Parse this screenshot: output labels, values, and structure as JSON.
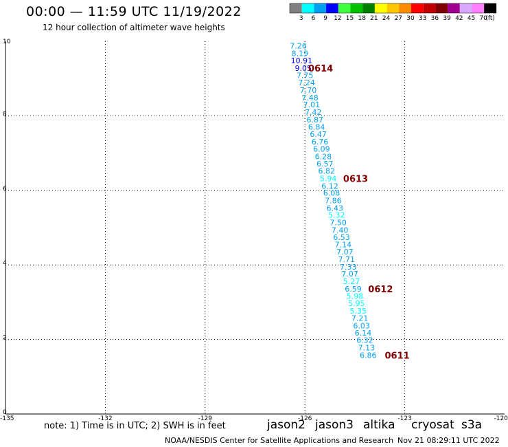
{
  "header": {
    "title": "00:00 — 11:59 UTC 11/19/2022",
    "subtitle": "12 hour collection of altimeter wave heights"
  },
  "legend": {
    "unit": "(ft)",
    "bins": [
      {
        "label": "3",
        "color": "#808080"
      },
      {
        "label": "6",
        "color": "#00ffff"
      },
      {
        "label": "9",
        "color": "#00a0f0"
      },
      {
        "label": "12",
        "color": "#0000ff"
      },
      {
        "label": "15",
        "color": "#40ff40"
      },
      {
        "label": "18",
        "color": "#00c000"
      },
      {
        "label": "21",
        "color": "#008000"
      },
      {
        "label": "24",
        "color": "#ffff00"
      },
      {
        "label": "27",
        "color": "#ffc800"
      },
      {
        "label": "30",
        "color": "#ff8c00"
      },
      {
        "label": "33",
        "color": "#ff0000"
      },
      {
        "label": "36",
        "color": "#c00000"
      },
      {
        "label": "39",
        "color": "#800000"
      },
      {
        "label": "42",
        "color": "#a00090"
      },
      {
        "label": "45",
        "color": "#d8a8ff"
      },
      {
        "label": "70",
        "color": "#ff80ff"
      },
      {
        "label": "",
        "color": "#000000"
      }
    ]
  },
  "chart_data": {
    "type": "scatter",
    "xlim": [
      -135,
      -120
    ],
    "ylim": [
      0,
      10
    ],
    "x_ticks": [
      "-135",
      "-132",
      "-129",
      "-126",
      "-123",
      "-120"
    ],
    "x_tick_values": [
      -135,
      -132,
      -129,
      -126,
      -123,
      -120
    ],
    "y_ticks": [
      "0",
      "2",
      "4",
      "6",
      "8",
      "10"
    ],
    "y_tick_values": [
      0,
      2,
      4,
      6,
      8,
      10
    ],
    "grid": true,
    "points": [
      {
        "lon": -126.2,
        "lat": 9.88,
        "value": "7.26",
        "color": "#00a0f0"
      },
      {
        "lon": -126.15,
        "lat": 9.68,
        "value": "8.19",
        "color": "#00a0f0"
      },
      {
        "lon": -126.1,
        "lat": 9.48,
        "value": "10.91",
        "color": "#0000ff"
      },
      {
        "lon": -126.05,
        "lat": 9.28,
        "value": "9.05",
        "color": "#0000ff"
      },
      {
        "lon": -126.0,
        "lat": 9.09,
        "value": "7.75",
        "color": "#00a0f0"
      },
      {
        "lon": -125.95,
        "lat": 8.89,
        "value": "7.24",
        "color": "#00a0f0"
      },
      {
        "lon": -125.9,
        "lat": 8.69,
        "value": "7.70",
        "color": "#00a0f0"
      },
      {
        "lon": -125.85,
        "lat": 8.49,
        "value": "7.48",
        "color": "#00a0f0"
      },
      {
        "lon": -125.8,
        "lat": 8.3,
        "value": "7.01",
        "color": "#00a0f0"
      },
      {
        "lon": -125.75,
        "lat": 8.1,
        "value": "7.42",
        "color": "#00a0f0"
      },
      {
        "lon": -125.7,
        "lat": 7.9,
        "value": "6.87",
        "color": "#00a0f0"
      },
      {
        "lon": -125.65,
        "lat": 7.7,
        "value": "6.84",
        "color": "#00a0f0"
      },
      {
        "lon": -125.6,
        "lat": 7.51,
        "value": "6.47",
        "color": "#00a0f0"
      },
      {
        "lon": -125.55,
        "lat": 7.31,
        "value": "6.76",
        "color": "#00a0f0"
      },
      {
        "lon": -125.5,
        "lat": 7.11,
        "value": "6.09",
        "color": "#00a0f0"
      },
      {
        "lon": -125.45,
        "lat": 6.91,
        "value": "6.28",
        "color": "#00a0f0"
      },
      {
        "lon": -125.4,
        "lat": 6.72,
        "value": "6.57",
        "color": "#00a0f0"
      },
      {
        "lon": -125.35,
        "lat": 6.52,
        "value": "6.82",
        "color": "#00a0f0"
      },
      {
        "lon": -125.3,
        "lat": 6.32,
        "value": "5.94",
        "color": "#00ffff"
      },
      {
        "lon": -125.25,
        "lat": 6.12,
        "value": "6.12",
        "color": "#00a0f0"
      },
      {
        "lon": -125.2,
        "lat": 5.93,
        "value": "6.08",
        "color": "#00a0f0"
      },
      {
        "lon": -125.15,
        "lat": 5.73,
        "value": "7.86",
        "color": "#00a0f0"
      },
      {
        "lon": -125.1,
        "lat": 5.53,
        "value": "6.43",
        "color": "#00a0f0"
      },
      {
        "lon": -125.05,
        "lat": 5.34,
        "value": "5.32",
        "color": "#00ffff"
      },
      {
        "lon": -125.0,
        "lat": 5.14,
        "value": "7.50",
        "color": "#00a0f0"
      },
      {
        "lon": -124.95,
        "lat": 4.94,
        "value": "7.40",
        "color": "#00a0f0"
      },
      {
        "lon": -124.9,
        "lat": 4.74,
        "value": "6.53",
        "color": "#00a0f0"
      },
      {
        "lon": -124.85,
        "lat": 4.55,
        "value": "7.14",
        "color": "#00a0f0"
      },
      {
        "lon": -124.8,
        "lat": 4.35,
        "value": "7.07",
        "color": "#00a0f0"
      },
      {
        "lon": -124.75,
        "lat": 4.15,
        "value": "7.71",
        "color": "#00a0f0"
      },
      {
        "lon": -124.7,
        "lat": 3.95,
        "value": "7.33",
        "color": "#00a0f0"
      },
      {
        "lon": -124.65,
        "lat": 3.76,
        "value": "7.07",
        "color": "#00a0f0"
      },
      {
        "lon": -124.6,
        "lat": 3.56,
        "value": "5.27",
        "color": "#00ffff"
      },
      {
        "lon": -124.55,
        "lat": 3.36,
        "value": "6.59",
        "color": "#00a0f0"
      },
      {
        "lon": -124.5,
        "lat": 3.16,
        "value": "5.98",
        "color": "#00ffff"
      },
      {
        "lon": -124.45,
        "lat": 2.97,
        "value": "5.95",
        "color": "#00ffff"
      },
      {
        "lon": -124.4,
        "lat": 2.77,
        "value": "5.35",
        "color": "#00ffff"
      },
      {
        "lon": -124.35,
        "lat": 2.57,
        "value": "7.21",
        "color": "#00a0f0"
      },
      {
        "lon": -124.3,
        "lat": 2.37,
        "value": "6.03",
        "color": "#00a0f0"
      },
      {
        "lon": -124.25,
        "lat": 2.18,
        "value": "6.14",
        "color": "#00a0f0"
      },
      {
        "lon": -124.2,
        "lat": 1.98,
        "value": "6.32",
        "color": "#00a0f0"
      },
      {
        "lon": -124.15,
        "lat": 1.78,
        "value": "7.13",
        "color": "#00a0f0"
      },
      {
        "lon": -124.1,
        "lat": 1.58,
        "value": "6.86",
        "color": "#00a0f0"
      }
    ],
    "time_labels": [
      {
        "lon": -125.9,
        "lat": 9.28,
        "text": "0614"
      },
      {
        "lon": -124.85,
        "lat": 6.32,
        "text": "0613"
      },
      {
        "lon": -124.1,
        "lat": 3.36,
        "text": "0612"
      },
      {
        "lon": -123.6,
        "lat": 1.58,
        "text": "0611"
      }
    ]
  },
  "note": "note: 1) Time is in UTC; 2) SWH is in feet",
  "missions": [
    {
      "name": "jason2",
      "color": "#0000ff"
    },
    {
      "name": "jason3",
      "color": "#00a000"
    },
    {
      "name": "altika",
      "color": "#ff8c00"
    },
    {
      "name": "cryosat",
      "color": "#ff0000"
    },
    {
      "name": "s3a",
      "color": "#800000"
    }
  ],
  "footer": {
    "credit": "NOAA/NESDIS Center for Satellite Applications and Research",
    "generated": "Nov 21 08:29:11 UTC 2022"
  }
}
